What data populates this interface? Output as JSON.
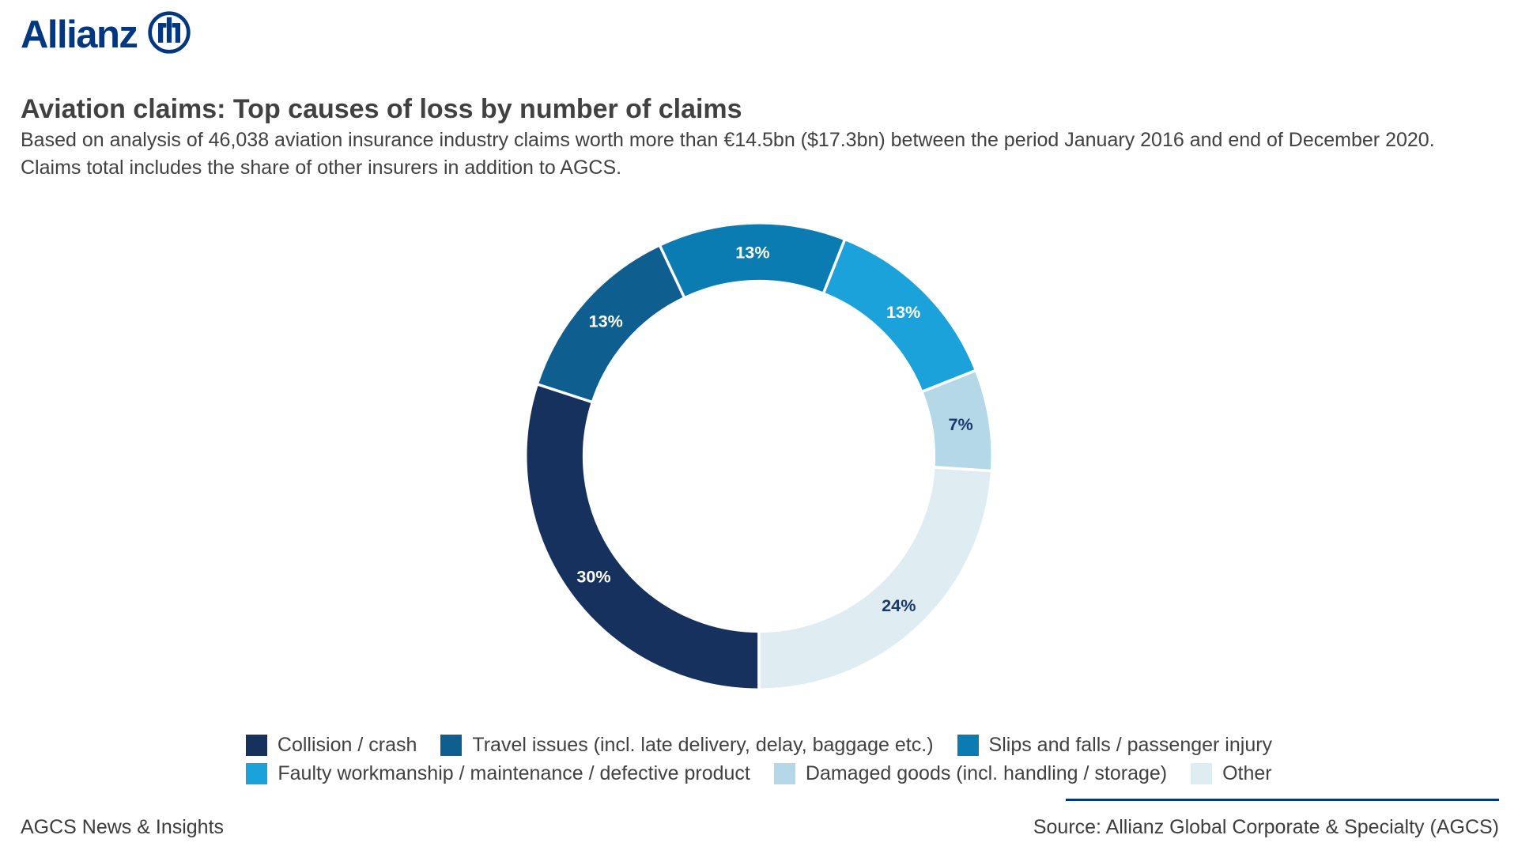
{
  "brand": {
    "logo_text": "Allianz",
    "logo_color": "#003781"
  },
  "header": {
    "title": "Aviation claims: Top causes of loss by number of claims",
    "subtitle_line1": "Based on analysis of 46,038 aviation insurance industry claims worth more than €14.5bn ($17.3bn) between the period January 2016 and end of December 2020.",
    "subtitle_line2": "Claims total includes the share of other insurers in addition to AGCS."
  },
  "chart_data": {
    "type": "pie",
    "subtype": "donut",
    "title": "Aviation claims: Top causes of loss by number of claims",
    "unit": "%",
    "start_angle_deg": 180,
    "direction": "clockwise",
    "inner_radius_ratio": 0.75,
    "gap_color": "#ffffff",
    "value_label_format": "{value}%",
    "legend_position": "bottom",
    "legend_rows": [
      3,
      3
    ],
    "segments": [
      {
        "label": "Collision / crash",
        "value": 30,
        "color": "#17315F",
        "label_color": "#FFFFFF"
      },
      {
        "label": "Travel issues (incl. late delivery, delay, baggage etc.)",
        "value": 13,
        "color": "#0E5F90",
        "label_color": "#FFFFFF"
      },
      {
        "label": "Slips and falls / passenger injury",
        "value": 13,
        "color": "#0A7CB2",
        "label_color": "#FFFFFF"
      },
      {
        "label": "Faulty workmanship / maintenance / defective product",
        "value": 13,
        "color": "#1BA2DA",
        "label_color": "#FFFFFF"
      },
      {
        "label": "Damaged goods (incl. handling / storage)",
        "value": 7,
        "color": "#B5D8E8",
        "label_color": "#1B3A6B"
      },
      {
        "label": "Other",
        "value": 24,
        "color": "#DFEDF3",
        "label_color": "#1B3A6B"
      }
    ]
  },
  "footer": {
    "left": "AGCS News & Insights",
    "source": "Source: Allianz Global Corporate & Specialty (AGCS)",
    "rule_color": "#003781"
  }
}
